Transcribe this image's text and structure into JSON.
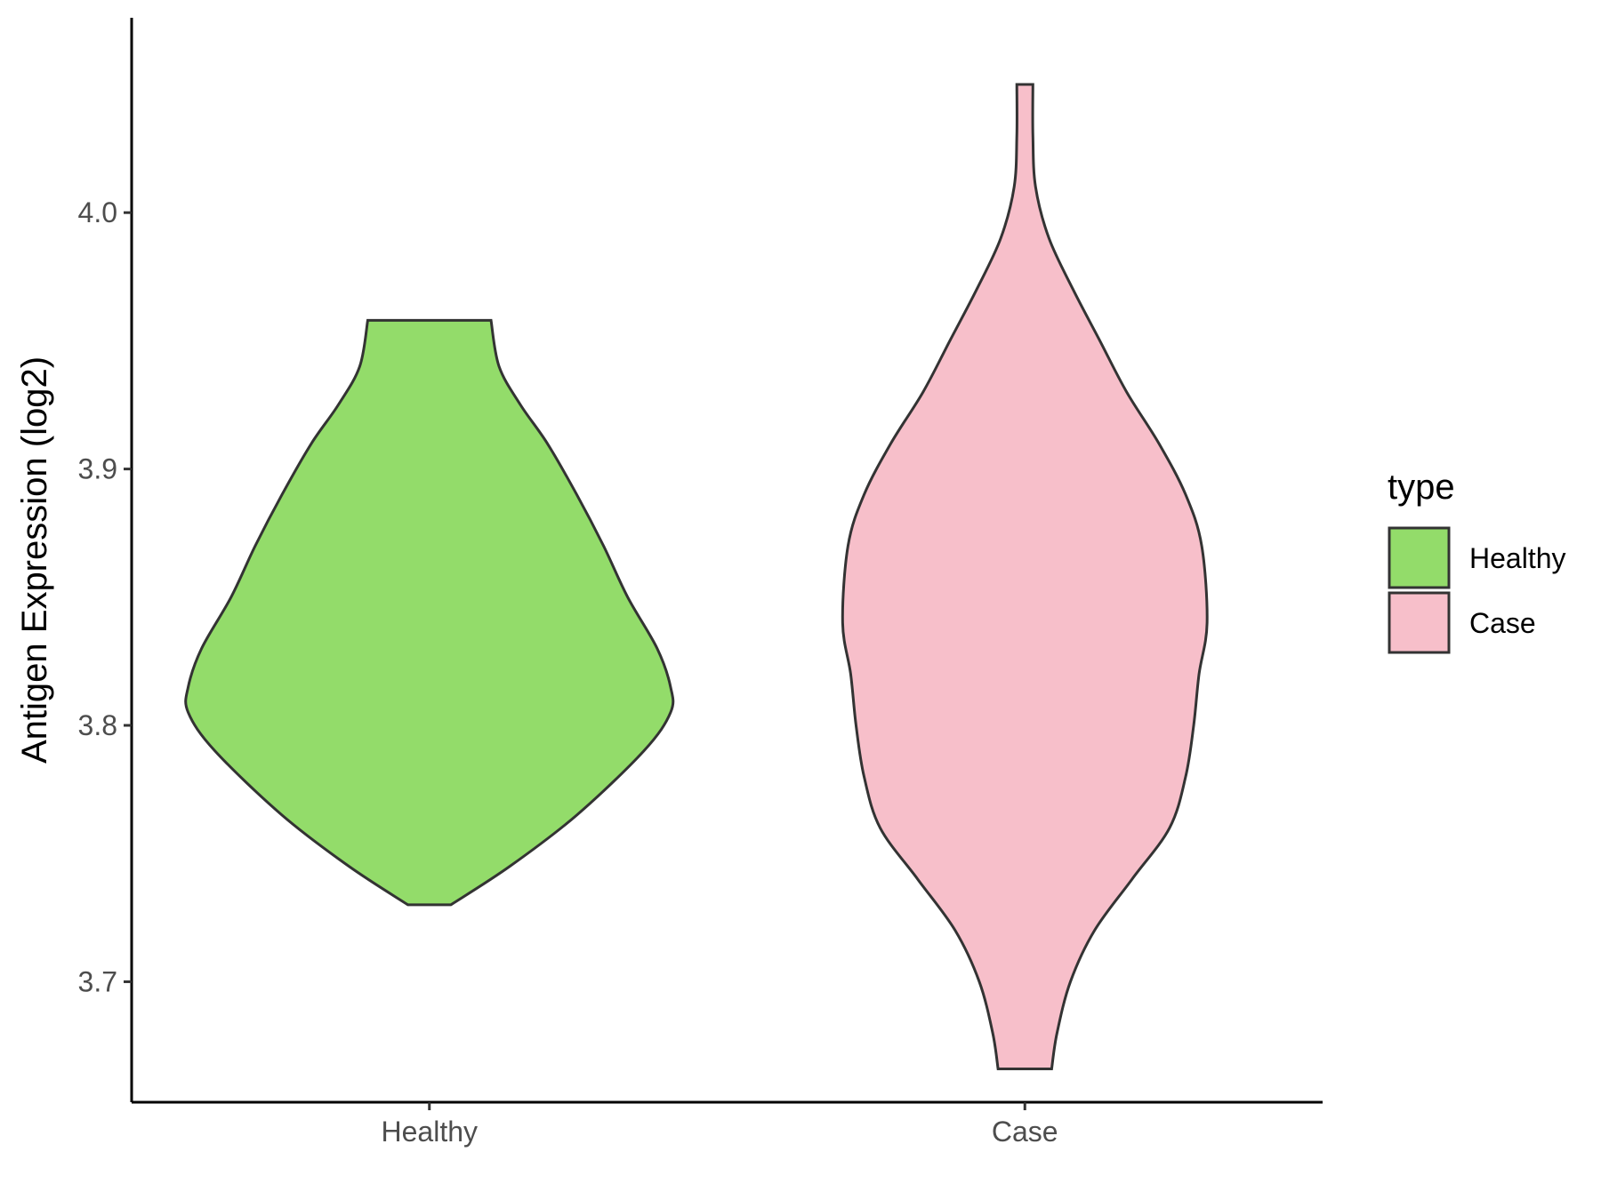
{
  "chart_data": {
    "type": "violin",
    "title": "",
    "xlabel": "",
    "ylabel": "Antigen Expression (log2)",
    "categories": [
      "Healthy",
      "Case"
    ],
    "ylim": [
      3.653,
      4.076
    ],
    "yticks": [
      "3.7",
      "3.8",
      "3.9",
      "4.0"
    ],
    "ytick_values": [
      3.7,
      3.8,
      3.9,
      4.0
    ],
    "grid": false,
    "legend": {
      "title": "type",
      "position": "right",
      "entries": [
        "Healthy",
        "Case"
      ]
    },
    "colors": {
      "Healthy": "#93dc6a",
      "Case": "#f7bfca",
      "outline": "#333333"
    },
    "series": [
      {
        "name": "Healthy",
        "min": 3.73,
        "max": 3.958,
        "density_profile": [
          [
            3.73,
            0.08
          ],
          [
            3.745,
            0.3
          ],
          [
            3.765,
            0.55
          ],
          [
            3.79,
            0.8
          ],
          [
            3.805,
            0.9
          ],
          [
            3.815,
            0.9
          ],
          [
            3.83,
            0.85
          ],
          [
            3.85,
            0.74
          ],
          [
            3.87,
            0.65
          ],
          [
            3.89,
            0.55
          ],
          [
            3.91,
            0.44
          ],
          [
            3.925,
            0.34
          ],
          [
            3.94,
            0.26
          ],
          [
            3.958,
            0.23
          ]
        ]
      },
      {
        "name": "Case",
        "min": 3.666,
        "max": 4.05,
        "density_profile": [
          [
            3.666,
            0.1
          ],
          [
            3.68,
            0.12
          ],
          [
            3.7,
            0.17
          ],
          [
            3.72,
            0.26
          ],
          [
            3.74,
            0.4
          ],
          [
            3.76,
            0.54
          ],
          [
            3.78,
            0.6
          ],
          [
            3.8,
            0.63
          ],
          [
            3.82,
            0.65
          ],
          [
            3.84,
            0.68
          ],
          [
            3.87,
            0.66
          ],
          [
            3.89,
            0.6
          ],
          [
            3.91,
            0.5
          ],
          [
            3.93,
            0.38
          ],
          [
            3.95,
            0.28
          ],
          [
            3.97,
            0.18
          ],
          [
            3.99,
            0.09
          ],
          [
            4.01,
            0.04
          ],
          [
            4.03,
            0.03
          ],
          [
            4.05,
            0.03
          ]
        ]
      }
    ]
  }
}
